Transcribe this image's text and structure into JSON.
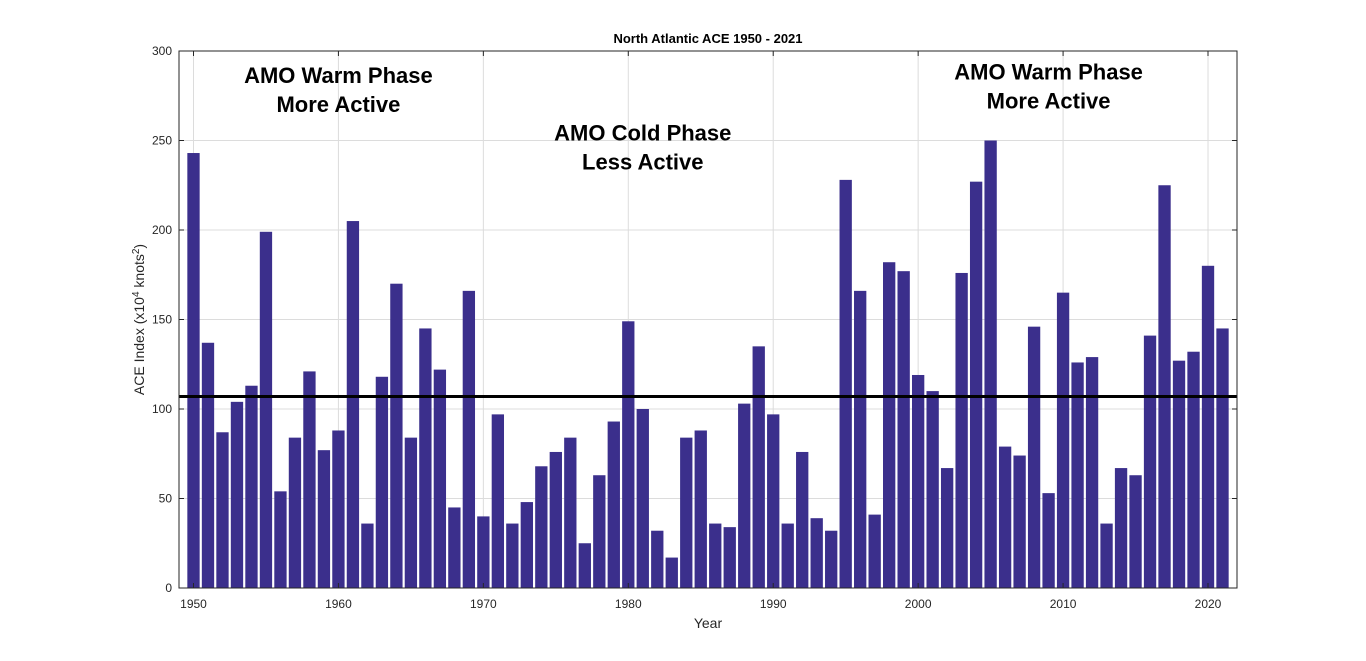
{
  "colors": {
    "bar": "#3b2f8c",
    "reference_line": "#000000",
    "grid": "#dcdcdc",
    "axis": "#262626"
  },
  "chart_data": {
    "type": "bar",
    "title": "North Atlantic ACE 1950 - 2021",
    "xlabel": "Year",
    "ylabel": {
      "prefix": "ACE Index (x10",
      "sup1": "4",
      "mid": " knots",
      "sup2": "2",
      "suffix": ")"
    },
    "xlim": [
      1949,
      2022
    ],
    "ylim": [
      0,
      300
    ],
    "xticks": [
      1950,
      1960,
      1970,
      1980,
      1990,
      2000,
      2010,
      2020
    ],
    "yticks": [
      0,
      50,
      100,
      150,
      200,
      250,
      300
    ],
    "grid": true,
    "reference_line": 107,
    "x": [
      1950,
      1951,
      1952,
      1953,
      1954,
      1955,
      1956,
      1957,
      1958,
      1959,
      1960,
      1961,
      1962,
      1963,
      1964,
      1965,
      1966,
      1967,
      1968,
      1969,
      1970,
      1971,
      1972,
      1973,
      1974,
      1975,
      1976,
      1977,
      1978,
      1979,
      1980,
      1981,
      1982,
      1983,
      1984,
      1985,
      1986,
      1987,
      1988,
      1989,
      1990,
      1991,
      1992,
      1993,
      1994,
      1995,
      1996,
      1997,
      1998,
      1999,
      2000,
      2001,
      2002,
      2003,
      2004,
      2005,
      2006,
      2007,
      2008,
      2009,
      2010,
      2011,
      2012,
      2013,
      2014,
      2015,
      2016,
      2017,
      2018,
      2019,
      2020,
      2021
    ],
    "values": [
      243,
      137,
      87,
      104,
      113,
      199,
      54,
      84,
      121,
      77,
      88,
      205,
      36,
      118,
      170,
      84,
      145,
      122,
      45,
      166,
      40,
      97,
      36,
      48,
      68,
      76,
      84,
      25,
      63,
      93,
      149,
      100,
      32,
      17,
      84,
      88,
      36,
      34,
      103,
      135,
      97,
      36,
      76,
      39,
      32,
      228,
      166,
      41,
      182,
      177,
      119,
      110,
      67,
      176,
      227,
      250,
      79,
      74,
      146,
      53,
      165,
      126,
      129,
      36,
      67,
      63,
      141,
      225,
      127,
      132,
      180,
      145
    ],
    "annotations": [
      {
        "lines": [
          "AMO Warm Phase",
          "More Active"
        ],
        "x": 1960,
        "y": 282
      },
      {
        "lines": [
          "AMO Cold Phase",
          "Less Active"
        ],
        "x": 1981,
        "y": 250
      },
      {
        "lines": [
          "AMO Warm Phase",
          "More Active"
        ],
        "x": 2009,
        "y": 284
      }
    ]
  }
}
